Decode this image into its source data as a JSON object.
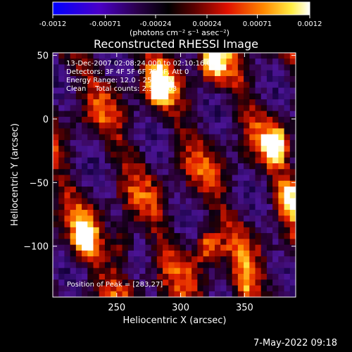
{
  "colorbar": {
    "ticks": [
      "-0.0012",
      "-0.00071",
      "-0.00024",
      "0.00024",
      "0.00071",
      "0.0012"
    ],
    "tick_values": [
      -0.0012,
      -0.00071,
      -0.00024,
      0.00024,
      0.00071,
      0.0012
    ],
    "range": [
      -0.0012,
      0.0012
    ],
    "units": "(photons cm⁻² s⁻¹ asec⁻²)",
    "colors": [
      "#0000ff",
      "#5000b0",
      "#000000",
      "#900000",
      "#ff3300",
      "#ff9900",
      "#ffff66",
      "#ffffff"
    ]
  },
  "chart_data": {
    "type": "heatmap",
    "title": "Reconstructed RHESSI Image",
    "xlabel": "Heliocentric X (arcsec)",
    "ylabel": "Heliocentric Y (arcsec)",
    "xlim": [
      200,
      390
    ],
    "ylim": [
      -140,
      52
    ],
    "x_ticks": [
      250,
      300,
      350
    ],
    "y_ticks": [
      50,
      0,
      -50,
      -100
    ],
    "x_tick_labels": [
      "250",
      "300",
      "350"
    ],
    "y_tick_labels": [
      "50",
      "0",
      "−50",
      "−100"
    ],
    "annotations": [
      "13-Dec-2007 02:08:24.000 to 02:10:16.000",
      "Detectors: 3F 4F 5F 6F 7F 8F, Att 0",
      "Energy Range: 12.0 - 25.0 keV",
      "Clean    Total counts: 2.36E+03"
    ],
    "peak_label": "Position of Peak = [283,27]",
    "peak": [
      283,
      27
    ],
    "bright_sources": [
      {
        "x": 283,
        "y": 27,
        "v": 1.0
      },
      {
        "x": 325,
        "y": 45,
        "v": 0.85
      },
      {
        "x": 375,
        "y": -20,
        "v": 0.9
      },
      {
        "x": 225,
        "y": -95,
        "v": 0.9
      },
      {
        "x": 320,
        "y": -100,
        "v": 0.7
      },
      {
        "x": 385,
        "y": -60,
        "v": 0.7
      },
      {
        "x": 255,
        "y": -100,
        "v": 0.6
      },
      {
        "x": 350,
        "y": -130,
        "v": 0.6
      }
    ]
  },
  "footer": {
    "date": "7-May-2022 09:18"
  }
}
